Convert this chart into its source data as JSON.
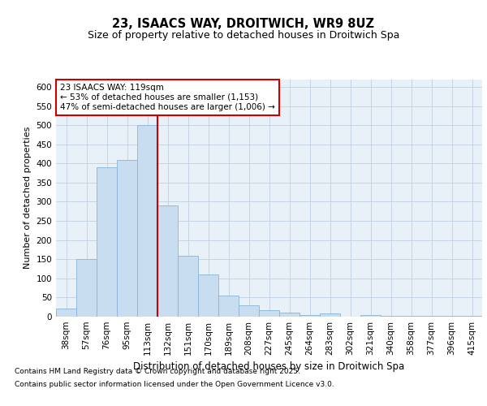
{
  "title_line1": "23, ISAACS WAY, DROITWICH, WR9 8UZ",
  "title_line2": "Size of property relative to detached houses in Droitwich Spa",
  "xlabel": "Distribution of detached houses by size in Droitwich Spa",
  "ylabel": "Number of detached properties",
  "categories": [
    "38sqm",
    "57sqm",
    "76sqm",
    "95sqm",
    "113sqm",
    "132sqm",
    "151sqm",
    "170sqm",
    "189sqm",
    "208sqm",
    "227sqm",
    "245sqm",
    "264sqm",
    "283sqm",
    "302sqm",
    "321sqm",
    "340sqm",
    "358sqm",
    "377sqm",
    "396sqm",
    "415sqm"
  ],
  "bar_heights": [
    22,
    150,
    390,
    410,
    500,
    290,
    160,
    110,
    55,
    30,
    17,
    10,
    5,
    8,
    1,
    5,
    3,
    2,
    3,
    2,
    2
  ],
  "bar_color": "#c9ddf0",
  "bar_edge_color": "#8ab4d8",
  "vline_x_idx": 4.5,
  "vline_color": "#cc0000",
  "annotation_title": "23 ISAACS WAY: 119sqm",
  "annotation_line1": "← 53% of detached houses are smaller (1,153)",
  "annotation_line2": "47% of semi-detached houses are larger (1,006) →",
  "annotation_box_color": "#cc0000",
  "annotation_bg": "#ffffff",
  "ylim_max": 620,
  "yticks": [
    0,
    50,
    100,
    150,
    200,
    250,
    300,
    350,
    400,
    450,
    500,
    550,
    600
  ],
  "grid_color": "#c0d0e0",
  "bg_color": "#e8f0f8",
  "plot_bg": "#ffffff",
  "footnote_line1": "Contains HM Land Registry data © Crown copyright and database right 2025.",
  "footnote_line2": "Contains public sector information licensed under the Open Government Licence v3.0.",
  "title_fontsize": 10.5,
  "subtitle_fontsize": 9,
  "ylabel_fontsize": 8,
  "xlabel_fontsize": 8.5,
  "tick_fontsize": 7.5,
  "annotation_fontsize": 7.5,
  "footnote_fontsize": 6.5
}
